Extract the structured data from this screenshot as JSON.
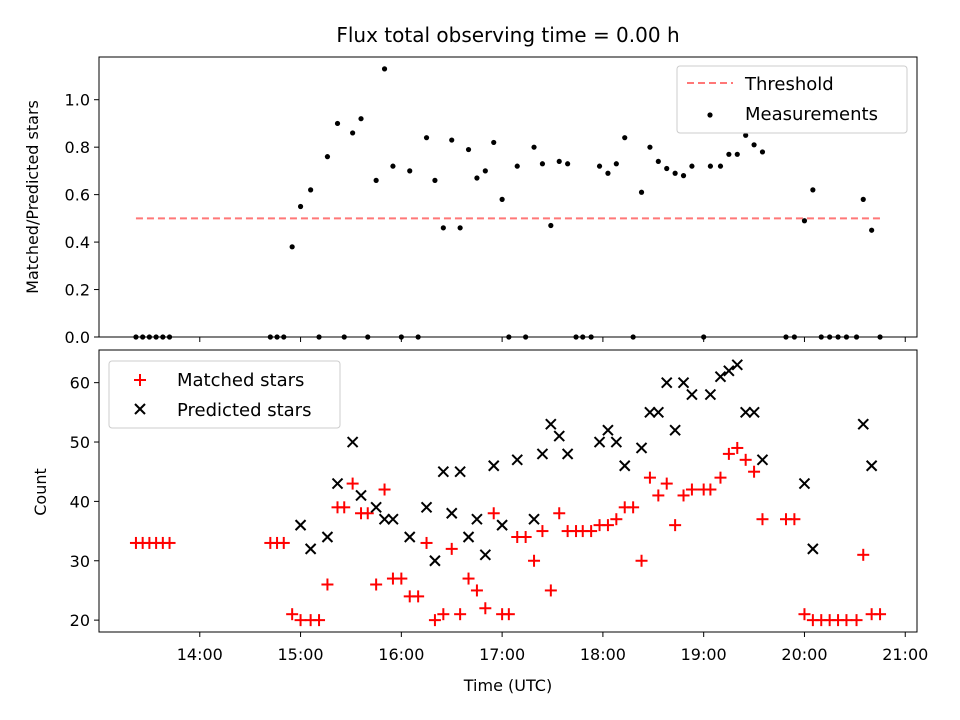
{
  "chart_data": [
    {
      "type": "scatter",
      "title": "Flux total observing time = 0.00 h",
      "xlabel": "",
      "ylabel": "Matched/Predicted stars",
      "ylim": [
        0,
        1.18
      ],
      "yticks": [
        0.0,
        0.2,
        0.4,
        0.6,
        0.8,
        1.0
      ],
      "ytick_labels": [
        "0.0",
        "0.2",
        "0.4",
        "0.6",
        "0.8",
        "1.0"
      ],
      "xlim": [
        "13:00",
        "21:07"
      ],
      "legend_position": "top-right",
      "threshold": {
        "name": "Threshold",
        "value": 0.5,
        "x_start": "13:22",
        "x_end": "20:45",
        "color": "#ff7777"
      },
      "series": [
        {
          "name": "Measurements",
          "color": "#000000",
          "points": [
            [
              "13:22",
              0
            ],
            [
              "13:26",
              0
            ],
            [
              "13:30",
              0
            ],
            [
              "13:34",
              0
            ],
            [
              "13:38",
              0
            ],
            [
              "13:42",
              0
            ],
            [
              "14:42",
              0
            ],
            [
              "14:46",
              0
            ],
            [
              "14:50",
              0
            ],
            [
              "14:55",
              0.38
            ],
            [
              "15:00",
              0.55
            ],
            [
              "15:06",
              0.62
            ],
            [
              "15:11",
              0
            ],
            [
              "15:16",
              0.76
            ],
            [
              "15:22",
              0.9
            ],
            [
              "15:26",
              0
            ],
            [
              "15:31",
              0.86
            ],
            [
              "15:36",
              0.92
            ],
            [
              "15:40",
              0
            ],
            [
              "15:45",
              0.66
            ],
            [
              "15:50",
              1.13
            ],
            [
              "15:55",
              0.72
            ],
            [
              "16:00",
              0
            ],
            [
              "16:05",
              0.7
            ],
            [
              "16:10",
              0
            ],
            [
              "16:15",
              0.84
            ],
            [
              "16:20",
              0.66
            ],
            [
              "16:25",
              0.46
            ],
            [
              "16:30",
              0.83
            ],
            [
              "16:35",
              0.46
            ],
            [
              "16:40",
              0.79
            ],
            [
              "16:45",
              0.67
            ],
            [
              "16:50",
              0.7
            ],
            [
              "16:55",
              0.82
            ],
            [
              "17:00",
              0.58
            ],
            [
              "17:04",
              0
            ],
            [
              "17:09",
              0.72
            ],
            [
              "17:14",
              0
            ],
            [
              "17:19",
              0.8
            ],
            [
              "17:24",
              0.73
            ],
            [
              "17:29",
              0.47
            ],
            [
              "17:34",
              0.74
            ],
            [
              "17:39",
              0.73
            ],
            [
              "17:44",
              0
            ],
            [
              "17:48",
              0
            ],
            [
              "17:53",
              0
            ],
            [
              "17:58",
              0.72
            ],
            [
              "18:03",
              0.69
            ],
            [
              "18:08",
              0.73
            ],
            [
              "18:13",
              0.84
            ],
            [
              "18:18",
              0
            ],
            [
              "18:23",
              0.61
            ],
            [
              "18:28",
              0.8
            ],
            [
              "18:33",
              0.74
            ],
            [
              "18:38",
              0.71
            ],
            [
              "18:43",
              0.69
            ],
            [
              "18:48",
              0.68
            ],
            [
              "18:53",
              0.72
            ],
            [
              "19:00",
              0
            ],
            [
              "19:04",
              0.72
            ],
            [
              "19:10",
              0.72
            ],
            [
              "19:15",
              0.77
            ],
            [
              "19:20",
              0.77
            ],
            [
              "19:25",
              0.85
            ],
            [
              "19:30",
              0.81
            ],
            [
              "19:35",
              0.78
            ],
            [
              "19:49",
              0
            ],
            [
              "19:54",
              0
            ],
            [
              "20:00",
              0.49
            ],
            [
              "20:05",
              0.62
            ],
            [
              "20:10",
              0
            ],
            [
              "20:15",
              0
            ],
            [
              "20:20",
              0
            ],
            [
              "20:25",
              0
            ],
            [
              "20:31",
              0
            ],
            [
              "20:35",
              0.58
            ],
            [
              "20:40",
              0.45
            ],
            [
              "20:45",
              0
            ]
          ]
        }
      ]
    },
    {
      "type": "scatter",
      "title": "",
      "xlabel": "Time (UTC)",
      "ylabel": "Count",
      "ylim": [
        18,
        65.5
      ],
      "yticks": [
        20,
        30,
        40,
        50,
        60
      ],
      "ytick_labels": [
        "20",
        "30",
        "40",
        "50",
        "60"
      ],
      "xlim": [
        "13:00",
        "21:07"
      ],
      "xticks": [
        "14:00",
        "15:00",
        "16:00",
        "17:00",
        "18:00",
        "19:00",
        "20:00",
        "21:00"
      ],
      "xtick_labels": [
        "14:00",
        "15:00",
        "16:00",
        "17:00",
        "18:00",
        "19:00",
        "20:00",
        "21:00"
      ],
      "legend_position": "top-left",
      "series": [
        {
          "name": "Matched stars",
          "color": "#ff0000",
          "marker": "plus",
          "points": [
            [
              "13:22",
              33
            ],
            [
              "13:26",
              33
            ],
            [
              "13:30",
              33
            ],
            [
              "13:34",
              33
            ],
            [
              "13:38",
              33
            ],
            [
              "13:42",
              33
            ],
            [
              "14:42",
              33
            ],
            [
              "14:46",
              33
            ],
            [
              "14:50",
              33
            ],
            [
              "14:55",
              21
            ],
            [
              "15:00",
              20
            ],
            [
              "15:06",
              20
            ],
            [
              "15:11",
              20
            ],
            [
              "15:16",
              26
            ],
            [
              "15:22",
              39
            ],
            [
              "15:26",
              39
            ],
            [
              "15:31",
              43
            ],
            [
              "15:36",
              38
            ],
            [
              "15:40",
              38
            ],
            [
              "15:45",
              26
            ],
            [
              "15:50",
              42
            ],
            [
              "15:55",
              27
            ],
            [
              "16:00",
              27
            ],
            [
              "16:05",
              24
            ],
            [
              "16:10",
              24
            ],
            [
              "16:15",
              33
            ],
            [
              "16:20",
              20
            ],
            [
              "16:25",
              21
            ],
            [
              "16:30",
              32
            ],
            [
              "16:35",
              21
            ],
            [
              "16:40",
              27
            ],
            [
              "16:45",
              25
            ],
            [
              "16:50",
              22
            ],
            [
              "16:55",
              38
            ],
            [
              "17:00",
              21
            ],
            [
              "17:04",
              21
            ],
            [
              "17:09",
              34
            ],
            [
              "17:14",
              34
            ],
            [
              "17:19",
              30
            ],
            [
              "17:24",
              35
            ],
            [
              "17:29",
              25
            ],
            [
              "17:34",
              38
            ],
            [
              "17:39",
              35
            ],
            [
              "17:44",
              35
            ],
            [
              "17:48",
              35
            ],
            [
              "17:53",
              35
            ],
            [
              "17:58",
              36
            ],
            [
              "18:03",
              36
            ],
            [
              "18:08",
              37
            ],
            [
              "18:13",
              39
            ],
            [
              "18:18",
              39
            ],
            [
              "18:23",
              30
            ],
            [
              "18:28",
              44
            ],
            [
              "18:33",
              41
            ],
            [
              "18:38",
              43
            ],
            [
              "18:43",
              36
            ],
            [
              "18:48",
              41
            ],
            [
              "18:53",
              42
            ],
            [
              "19:00",
              42
            ],
            [
              "19:04",
              42
            ],
            [
              "19:10",
              44
            ],
            [
              "19:15",
              48
            ],
            [
              "19:20",
              49
            ],
            [
              "19:25",
              47
            ],
            [
              "19:30",
              45
            ],
            [
              "19:35",
              37
            ],
            [
              "19:49",
              37
            ],
            [
              "19:54",
              37
            ],
            [
              "20:00",
              21
            ],
            [
              "20:05",
              20
            ],
            [
              "20:10",
              20
            ],
            [
              "20:15",
              20
            ],
            [
              "20:20",
              20
            ],
            [
              "20:25",
              20
            ],
            [
              "20:31",
              20
            ],
            [
              "20:35",
              31
            ],
            [
              "20:40",
              21
            ],
            [
              "20:45",
              21
            ]
          ]
        },
        {
          "name": "Predicted stars",
          "color": "#000000",
          "marker": "x",
          "points": [
            [
              "15:00",
              36
            ],
            [
              "15:06",
              32
            ],
            [
              "15:16",
              34
            ],
            [
              "15:22",
              43
            ],
            [
              "15:31",
              50
            ],
            [
              "15:36",
              41
            ],
            [
              "15:45",
              39
            ],
            [
              "15:50",
              37
            ],
            [
              "15:55",
              37
            ],
            [
              "16:05",
              34
            ],
            [
              "16:15",
              39
            ],
            [
              "16:20",
              30
            ],
            [
              "16:25",
              45
            ],
            [
              "16:30",
              38
            ],
            [
              "16:35",
              45
            ],
            [
              "16:40",
              34
            ],
            [
              "16:45",
              37
            ],
            [
              "16:50",
              31
            ],
            [
              "16:55",
              46
            ],
            [
              "17:00",
              36
            ],
            [
              "17:09",
              47
            ],
            [
              "17:19",
              37
            ],
            [
              "17:24",
              48
            ],
            [
              "17:29",
              53
            ],
            [
              "17:34",
              51
            ],
            [
              "17:39",
              48
            ],
            [
              "17:58",
              50
            ],
            [
              "18:03",
              52
            ],
            [
              "18:08",
              50
            ],
            [
              "18:13",
              46
            ],
            [
              "18:23",
              49
            ],
            [
              "18:28",
              55
            ],
            [
              "18:33",
              55
            ],
            [
              "18:38",
              60
            ],
            [
              "18:43",
              52
            ],
            [
              "18:48",
              60
            ],
            [
              "18:53",
              58
            ],
            [
              "19:04",
              58
            ],
            [
              "19:10",
              61
            ],
            [
              "19:15",
              62
            ],
            [
              "19:20",
              63
            ],
            [
              "19:25",
              55
            ],
            [
              "19:30",
              55
            ],
            [
              "19:35",
              47
            ],
            [
              "20:00",
              43
            ],
            [
              "20:05",
              32
            ],
            [
              "20:35",
              53
            ],
            [
              "20:40",
              46
            ]
          ]
        }
      ]
    }
  ]
}
